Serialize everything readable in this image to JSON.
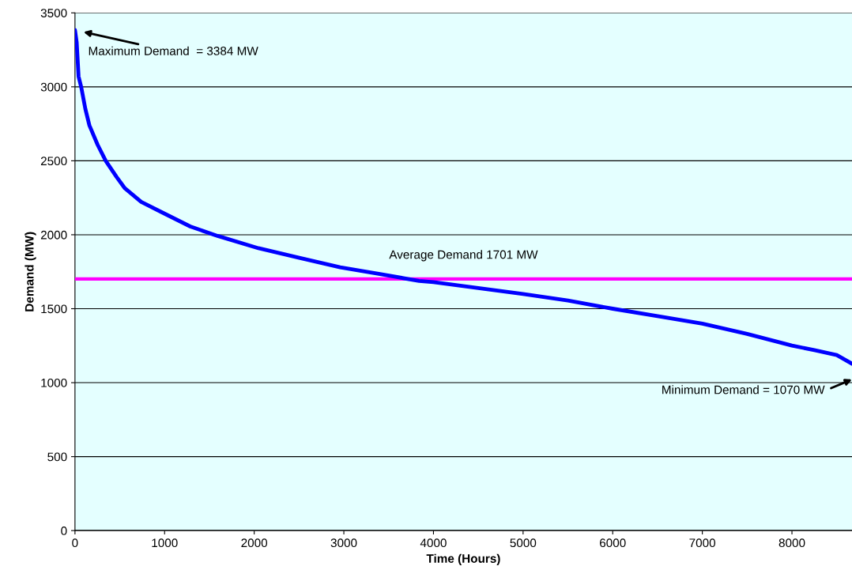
{
  "chart_data": {
    "type": "line",
    "xlabel": "Time (Hours)",
    "ylabel": "Demand (MW)",
    "series": [
      {
        "color": "#0000ff",
        "x": [
          0,
          19,
          40,
          70,
          116,
          161,
          252,
          344,
          466,
          557,
          739,
          982,
          1287,
          1591,
          2047,
          2503,
          2959,
          3415,
          3840,
          4000,
          4500,
          5000,
          5500,
          6000,
          6500,
          7000,
          7500,
          8000,
          8250,
          8500,
          8670
        ],
        "values": [
          3384,
          3300,
          3070,
          2997,
          2850,
          2739,
          2609,
          2499,
          2389,
          2314,
          2222,
          2148,
          2056,
          1992,
          1909,
          1844,
          1780,
          1733,
          1688,
          1680,
          1640,
          1600,
          1555,
          1500,
          1450,
          1399,
          1330,
          1251,
          1220,
          1187,
          1128
        ]
      }
    ],
    "ref_lines": [
      {
        "axis": "y",
        "value": 1701,
        "label": "Average Demand 1701 MW",
        "color": "#ff00ff"
      }
    ],
    "annotations": [
      {
        "text": "Maximum Demand  = 3384 MW",
        "x": 0,
        "y": 3384
      },
      "Minimum Demand = 1070 MW"
    ],
    "xlim": [
      0,
      8670
    ],
    "xticks": [
      0,
      1000,
      2000,
      3000,
      4000,
      5000,
      6000,
      7000,
      8000
    ],
    "ylim": [
      0,
      3500
    ],
    "yticks": [
      0,
      500,
      1000,
      1500,
      2000,
      2500,
      3000,
      3500
    ],
    "grid": "y",
    "legend": false,
    "marker": "none",
    "line_style": "solid"
  }
}
